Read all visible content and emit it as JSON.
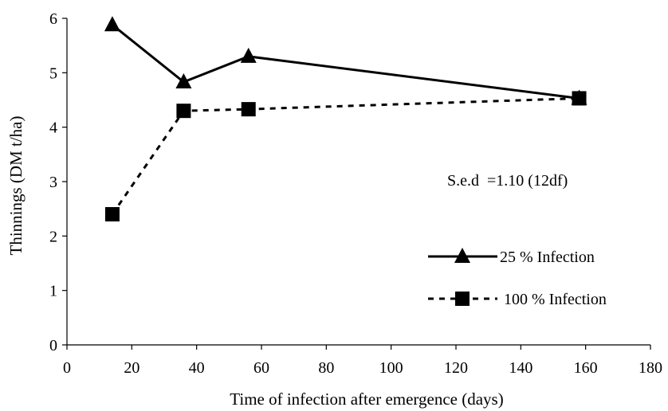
{
  "chart_data": {
    "type": "line",
    "xlabel": "Time of infection after emergence (days)",
    "ylabel": "Thinnings (DM t/ha)",
    "xlim": [
      0,
      180
    ],
    "ylim": [
      0,
      6
    ],
    "x_ticks": [
      0,
      20,
      40,
      60,
      80,
      100,
      120,
      140,
      160,
      180
    ],
    "y_ticks": [
      0,
      1,
      2,
      3,
      4,
      5,
      6
    ],
    "grid": false,
    "legend_position": "right",
    "annotation": "S.e.d  =1.10 (12df)",
    "series": [
      {
        "name": "25 % Infection",
        "marker": "triangle",
        "line_style": "solid",
        "color": "#000000",
        "x": [
          14,
          36,
          56,
          158
        ],
        "y": [
          5.88,
          4.83,
          5.3,
          4.53
        ]
      },
      {
        "name": "100 % Infection",
        "marker": "square",
        "line_style": "dashed",
        "color": "#000000",
        "x": [
          14,
          36,
          56,
          158
        ],
        "y": [
          2.4,
          4.3,
          4.33,
          4.53
        ]
      }
    ]
  }
}
